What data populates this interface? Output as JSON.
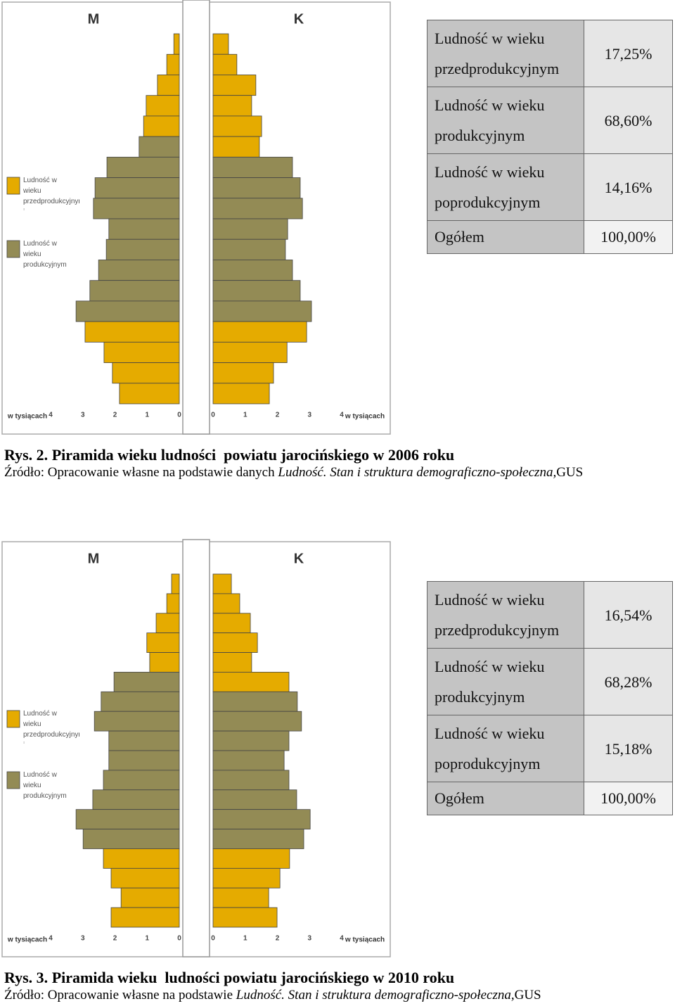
{
  "chart_data": [
    {
      "type": "pyramid",
      "xlabel": "w tysiącach",
      "xlim": [
        0,
        4
      ],
      "xticks": [
        0,
        1,
        2,
        3,
        4
      ],
      "legend": [
        {
          "label": "Ludność w wieku przedprodukcyjnym i poprodukcyjnym",
          "color": "#e5ab00"
        },
        {
          "label": "Ludność w wieku produkcyjnym",
          "color": "#938b55"
        }
      ],
      "series": [
        {
          "name": "M",
          "side": "left",
          "values": [
            0.17,
            0.39,
            0.68,
            1.03,
            1.11,
            1.25,
            2.25,
            2.62,
            2.67,
            2.19,
            2.27,
            2.51,
            2.78,
            3.21,
            2.93,
            2.34,
            2.08,
            1.86
          ],
          "colors": [
            "#e5ab00",
            "#e5ab00",
            "#e5ab00",
            "#e5ab00",
            "#e5ab00",
            "#938b55",
            "#938b55",
            "#938b55",
            "#938b55",
            "#938b55",
            "#938b55",
            "#938b55",
            "#938b55",
            "#938b55",
            "#e5ab00",
            "#e5ab00",
            "#e5ab00",
            "#e5ab00"
          ]
        },
        {
          "name": "K",
          "side": "right",
          "values": [
            0.48,
            0.74,
            1.33,
            1.2,
            1.51,
            1.44,
            2.47,
            2.71,
            2.78,
            2.32,
            2.25,
            2.47,
            2.71,
            3.06,
            2.91,
            2.3,
            1.88,
            1.75
          ],
          "colors": [
            "#e5ab00",
            "#e5ab00",
            "#e5ab00",
            "#e5ab00",
            "#e5ab00",
            "#e5ab00",
            "#938b55",
            "#938b55",
            "#938b55",
            "#938b55",
            "#938b55",
            "#938b55",
            "#938b55",
            "#938b55",
            "#e5ab00",
            "#e5ab00",
            "#e5ab00",
            "#e5ab00"
          ]
        }
      ]
    },
    {
      "type": "pyramid",
      "xlabel": "w tysiącach",
      "xlim": [
        0,
        4
      ],
      "xticks": [
        0,
        1,
        2,
        3,
        4
      ],
      "legend": [
        {
          "label": "Ludność w wieku przedprodukcyjnym i poprodukcyjnym",
          "color": "#e5ab00"
        },
        {
          "label": "Ludność w wieku produkcyjnym",
          "color": "#938b55"
        }
      ],
      "series": [
        {
          "name": "M",
          "side": "left",
          "values": [
            0.24,
            0.39,
            0.72,
            1.01,
            0.92,
            2.03,
            2.43,
            2.64,
            2.19,
            2.19,
            2.36,
            2.69,
            3.21,
            2.99,
            2.36,
            2.12,
            1.81,
            2.12
          ],
          "colors": [
            "#e5ab00",
            "#e5ab00",
            "#e5ab00",
            "#e5ab00",
            "#e5ab00",
            "#938b55",
            "#938b55",
            "#938b55",
            "#938b55",
            "#938b55",
            "#938b55",
            "#938b55",
            "#938b55",
            "#938b55",
            "#e5ab00",
            "#e5ab00",
            "#e5ab00",
            "#e5ab00"
          ]
        },
        {
          "name": "K",
          "side": "right",
          "values": [
            0.57,
            0.83,
            1.16,
            1.38,
            1.2,
            2.36,
            2.62,
            2.75,
            2.36,
            2.21,
            2.36,
            2.6,
            3.02,
            2.82,
            2.38,
            2.08,
            1.73,
            1.99
          ],
          "colors": [
            "#e5ab00",
            "#e5ab00",
            "#e5ab00",
            "#e5ab00",
            "#e5ab00",
            "#e5ab00",
            "#938b55",
            "#938b55",
            "#938b55",
            "#938b55",
            "#938b55",
            "#938b55",
            "#938b55",
            "#938b55",
            "#e5ab00",
            "#e5ab00",
            "#e5ab00",
            "#e5ab00"
          ]
        }
      ]
    }
  ],
  "figures": [
    {
      "table": {
        "rows": [
          [
            "Ludność w wieku przedprodukcyjnym",
            "17,25%"
          ],
          [
            "Ludność w wieku produkcyjnym",
            "68,60%"
          ],
          [
            "Ludność w wieku poprodukcyjnym",
            "14,16%"
          ],
          [
            "Ogółem",
            "100,00%"
          ]
        ]
      },
      "caption": {
        "label": "Rys. 2.",
        "text": "Piramida wieku ludności  powiatu jarocińskiego w 2006 roku"
      },
      "source": {
        "prefix": "Źródło: Opracowanie własne na podstawie danych ",
        "italic": "Ludność. Stan i struktura demograficzno-społeczna,",
        "suffix": "GUS"
      }
    },
    {
      "table": {
        "rows": [
          [
            "Ludność w wieku przedprodukcyjnym",
            "16,54%"
          ],
          [
            "Ludność w wieku produkcyjnym",
            "68,28%"
          ],
          [
            "Ludność w wieku poprodukcyjnym",
            "15,18%"
          ],
          [
            "Ogółem",
            "100,00%"
          ]
        ]
      },
      "caption": {
        "label": "Rys. 3.",
        "text": "Piramida wieku  ludności powiatu jarocińskiego w 2010 roku"
      },
      "source": {
        "prefix": "Źródło: Opracowanie własne na podstawie ",
        "italic": "Ludność. Stan i struktura demograficzno-społeczna,",
        "suffix": "GUS"
      }
    }
  ]
}
